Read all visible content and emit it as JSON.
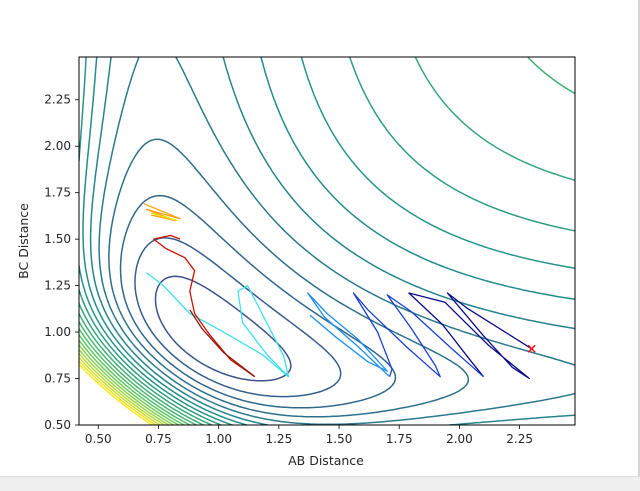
{
  "chart_data": {
    "type": "contour",
    "title": "",
    "xlabel": "AB Distance",
    "ylabel": "BC Distance",
    "xlim": [
      0.42,
      2.48
    ],
    "ylim": [
      0.5,
      2.48
    ],
    "xticks": [
      "0.50",
      "0.75",
      "1.00",
      "1.25",
      "1.50",
      "1.75",
      "2.00",
      "2.25"
    ],
    "yticks": [
      "0.50",
      "0.75",
      "1.00",
      "1.25",
      "1.50",
      "1.75",
      "2.00",
      "2.25"
    ],
    "grid": false,
    "legend": "none",
    "colormap": [
      "#440154",
      "#3b528b",
      "#21918c",
      "#5ec962",
      "#fde725"
    ],
    "contours": {
      "surface": "valley along AB ≈ BC reaction coordinate, minima at large AB / BC ≈ 0.74 and large BC / AB ≈ 0.74",
      "level_count": 28
    },
    "trajectories": [
      {
        "color": "#0a0a8a",
        "points": [
          [
            2.3,
            0.91
          ],
          [
            2.03,
            1.13
          ],
          [
            1.95,
            1.21
          ],
          [
            2.1,
            0.98
          ],
          [
            2.22,
            0.81
          ],
          [
            2.29,
            0.75
          ],
          [
            2.12,
            0.93
          ],
          [
            1.94,
            1.16
          ],
          [
            1.79,
            1.21
          ],
          [
            1.93,
            1.04
          ],
          [
            2.05,
            0.84
          ],
          [
            2.1,
            0.76
          ]
        ]
      },
      {
        "color": "#1a3fd4",
        "points": [
          [
            2.1,
            0.76
          ],
          [
            1.96,
            0.92
          ],
          [
            1.8,
            1.11
          ],
          [
            1.7,
            1.2
          ],
          [
            1.8,
            1.02
          ],
          [
            1.9,
            0.82
          ],
          [
            1.92,
            0.76
          ],
          [
            1.78,
            0.92
          ],
          [
            1.62,
            1.12
          ],
          [
            1.56,
            1.21
          ],
          [
            1.66,
            1.0
          ],
          [
            1.72,
            0.8
          ],
          [
            1.71,
            0.76
          ]
        ]
      },
      {
        "color": "#1f8ff0",
        "points": [
          [
            1.71,
            0.76
          ],
          [
            1.58,
            0.92
          ],
          [
            1.44,
            1.08
          ],
          [
            1.37,
            1.21
          ],
          [
            1.45,
            1.1
          ],
          [
            1.58,
            0.96
          ],
          [
            1.7,
            0.79
          ],
          [
            1.62,
            0.84
          ],
          [
            1.48,
            0.98
          ],
          [
            1.38,
            1.09
          ]
        ]
      },
      {
        "color": "#3fe0f0",
        "points": [
          [
            1.29,
            0.76
          ],
          [
            1.2,
            0.88
          ],
          [
            1.1,
            1.05
          ],
          [
            1.08,
            1.22
          ],
          [
            1.12,
            1.25
          ],
          [
            1.2,
            1.05
          ],
          [
            1.27,
            0.87
          ],
          [
            1.29,
            0.76
          ],
          [
            1.18,
            0.88
          ],
          [
            1.02,
            1.0
          ],
          [
            0.88,
            1.1
          ],
          [
            0.77,
            1.25
          ],
          [
            0.7,
            1.32
          ]
        ]
      },
      {
        "color": "#cc1100",
        "points": [
          [
            1.15,
            0.76
          ],
          [
            1.05,
            0.85
          ],
          [
            0.96,
            0.99
          ],
          [
            0.9,
            1.1
          ],
          [
            0.88,
            1.22
          ],
          [
            0.9,
            1.33
          ],
          [
            0.86,
            1.4
          ],
          [
            0.78,
            1.45
          ],
          [
            0.73,
            1.5
          ],
          [
            0.8,
            1.52
          ],
          [
            0.84,
            1.5
          ]
        ]
      },
      {
        "color": "#8a1a10",
        "points": [
          [
            1.15,
            0.76
          ],
          [
            1.02,
            0.89
          ],
          [
            0.93,
            1.02
          ],
          [
            0.88,
            1.12
          ]
        ]
      },
      {
        "color": "#ffa010",
        "points": [
          [
            0.69,
            1.69
          ],
          [
            0.84,
            1.61
          ],
          [
            0.7,
            1.66
          ],
          [
            0.82,
            1.6
          ],
          [
            0.72,
            1.63
          ]
        ]
      },
      {
        "color": "#e8e800",
        "points": [
          [
            0.72,
            1.64
          ],
          [
            0.83,
            1.6
          ]
        ]
      }
    ],
    "end_marker": {
      "symbol": "x",
      "color": "#ff0000",
      "point": [
        2.3,
        0.91
      ]
    }
  }
}
